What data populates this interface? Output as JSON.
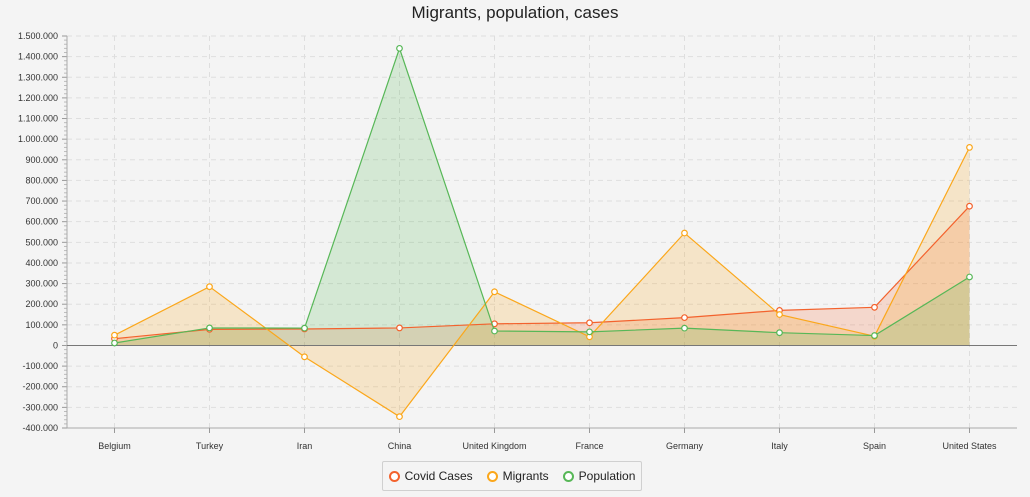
{
  "chart_data": {
    "type": "area",
    "title": "Migrants, population, cases",
    "xlabel": "",
    "ylabel": "",
    "categories": [
      "Belgium",
      "Turkey",
      "Iran",
      "China",
      "United Kingdom",
      "France",
      "Germany",
      "Italy",
      "Spain",
      "United States"
    ],
    "ylim": [
      -400000,
      1500000
    ],
    "ytick_step": 100000,
    "grid": true,
    "legend_position": "bottom",
    "series": [
      {
        "name": "Covid Cases",
        "color": "#f3622d",
        "values": [
          33000,
          78000,
          80000,
          85000,
          105000,
          110000,
          135000,
          170000,
          185000,
          675000
        ]
      },
      {
        "name": "Migrants",
        "color": "#fba71b",
        "values": [
          50000,
          285000,
          -55000,
          -345000,
          260000,
          42000,
          545000,
          150000,
          45000,
          960000
        ]
      },
      {
        "name": "Population",
        "color": "#57b757",
        "values": [
          12000,
          85000,
          84000,
          1440000,
          70000,
          66000,
          84000,
          62000,
          48000,
          332000
        ]
      }
    ]
  },
  "legend": {
    "items": [
      {
        "label": "Covid Cases",
        "color": "#f3622d"
      },
      {
        "label": "Migrants",
        "color": "#fba71b"
      },
      {
        "label": "Population",
        "color": "#57b757"
      }
    ]
  }
}
